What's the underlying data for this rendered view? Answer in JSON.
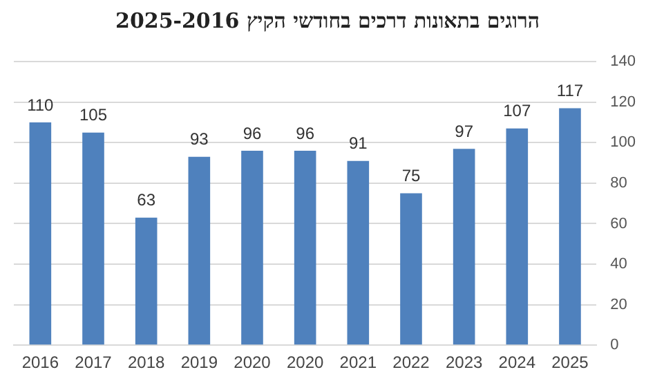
{
  "chart_data": {
    "type": "bar",
    "title": "הרוגים בתאונות דרכים בחודשי הקיץ 2025-2016",
    "categories": [
      "2016",
      "2017",
      "2018",
      "2019",
      "2020",
      "2020",
      "2021",
      "2022",
      "2023",
      "2024",
      "2025"
    ],
    "values": [
      110,
      105,
      63,
      93,
      96,
      96,
      91,
      75,
      97,
      107,
      117
    ],
    "color": "#4f81bd",
    "ylim": [
      0,
      140
    ],
    "yticks": [
      0,
      20,
      40,
      60,
      80,
      100,
      120,
      140
    ],
    "grid": "y",
    "data_labels": true
  }
}
